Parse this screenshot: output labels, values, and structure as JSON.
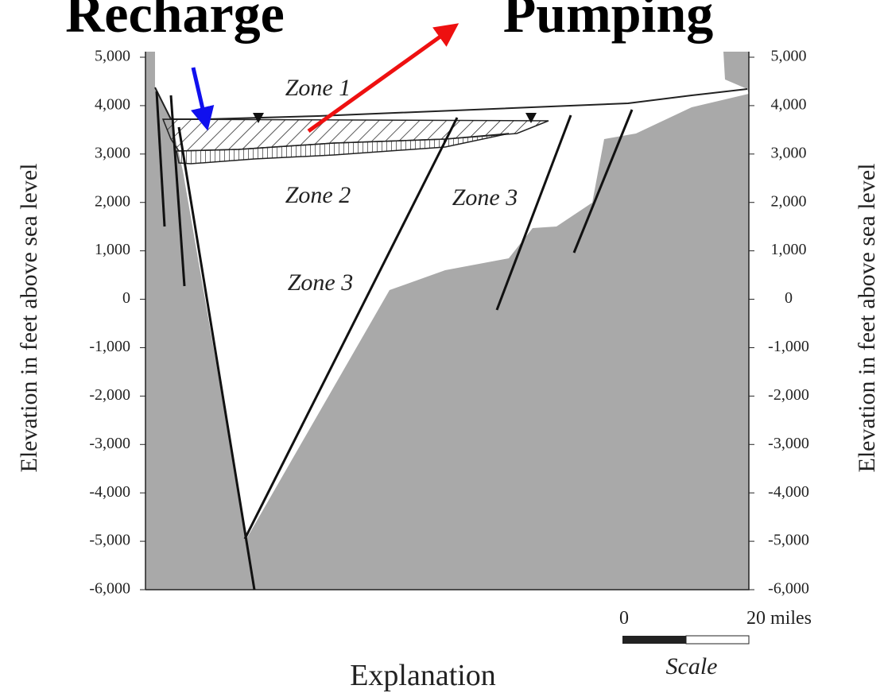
{
  "header": {
    "recharge": "Recharge",
    "pumping": "Pumping"
  },
  "axes": {
    "left_label": "Elevation in feet above sea level",
    "right_label": "Elevation in feet above sea level",
    "ticks": [
      "5,000",
      "4,000",
      "3,000",
      "2,000",
      "1,000",
      "0",
      "-1,000",
      "-2,000",
      "-3,000",
      "-4,000",
      "-5,000",
      "-6,000"
    ]
  },
  "zones": [
    "Zone 1",
    "Zone 2",
    "Zone 3",
    "Zone 3"
  ],
  "scale": {
    "start": "0",
    "end": "20 miles",
    "caption": "Scale"
  },
  "footer": "Explanation"
}
